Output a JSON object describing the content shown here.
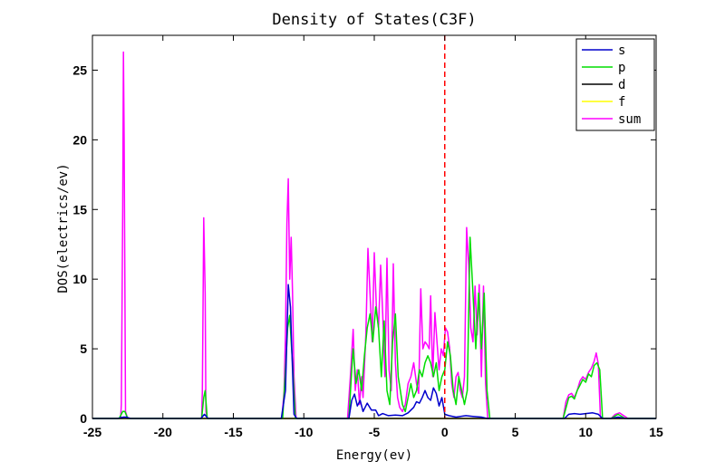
{
  "chart_data": {
    "type": "line",
    "title": "Density of States(C3F)",
    "xlabel": "Energy(ev)",
    "ylabel": "DOS(electrics/ev)",
    "xlim": [
      -25,
      15
    ],
    "ylim": [
      0,
      27.5
    ],
    "xticks": [
      -25,
      -20,
      -15,
      -10,
      -5,
      0,
      5,
      10,
      15
    ],
    "yticks": [
      0,
      5,
      10,
      15,
      20,
      25
    ],
    "grid": false,
    "legend_position": "top-right",
    "fermi_level": {
      "x": 0,
      "color": "#ff0000",
      "style": "dashed"
    },
    "series": [
      {
        "name": "s",
        "color": "#0000cc",
        "points": [
          [
            -25,
            0
          ],
          [
            -23.2,
            0
          ],
          [
            -22.8,
            0.1
          ],
          [
            -22.6,
            0.1
          ],
          [
            -22.3,
            0
          ],
          [
            -17.3,
            0
          ],
          [
            -17.05,
            0.3
          ],
          [
            -16.8,
            0
          ],
          [
            -11.6,
            0
          ],
          [
            -11.3,
            2
          ],
          [
            -11.1,
            9.6
          ],
          [
            -10.95,
            8
          ],
          [
            -10.7,
            0.3
          ],
          [
            -10.5,
            0
          ],
          [
            -6.8,
            0
          ],
          [
            -6.6,
            1.3
          ],
          [
            -6.4,
            1.75
          ],
          [
            -6.2,
            0.9
          ],
          [
            -6.0,
            1.3
          ],
          [
            -5.8,
            0.5
          ],
          [
            -5.5,
            1.1
          ],
          [
            -5.2,
            0.6
          ],
          [
            -4.9,
            0.6
          ],
          [
            -4.7,
            0.2
          ],
          [
            -4.4,
            0.35
          ],
          [
            -4.0,
            0.2
          ],
          [
            -3.5,
            0.25
          ],
          [
            -3.0,
            0.2
          ],
          [
            -2.6,
            0.4
          ],
          [
            -2.2,
            0.8
          ],
          [
            -2.0,
            1.2
          ],
          [
            -1.8,
            1.1
          ],
          [
            -1.6,
            1.5
          ],
          [
            -1.4,
            2.0
          ],
          [
            -1.2,
            1.5
          ],
          [
            -1.0,
            1.3
          ],
          [
            -0.8,
            2.2
          ],
          [
            -0.6,
            1.8
          ],
          [
            -0.4,
            0.9
          ],
          [
            -0.2,
            1.5
          ],
          [
            0.0,
            0.3
          ],
          [
            0.3,
            0.2
          ],
          [
            0.8,
            0.1
          ],
          [
            1.5,
            0.2
          ],
          [
            2.0,
            0.15
          ],
          [
            2.6,
            0.1
          ],
          [
            3.0,
            0
          ],
          [
            8.5,
            0
          ],
          [
            8.8,
            0.3
          ],
          [
            9.2,
            0.35
          ],
          [
            9.6,
            0.3
          ],
          [
            10.0,
            0.35
          ],
          [
            10.5,
            0.4
          ],
          [
            10.9,
            0.3
          ],
          [
            11.2,
            0
          ],
          [
            11.8,
            0
          ],
          [
            12.3,
            0.1
          ],
          [
            12.8,
            0
          ],
          [
            15,
            0
          ]
        ]
      },
      {
        "name": "p",
        "color": "#00dd00",
        "points": [
          [
            -25,
            0
          ],
          [
            -23.1,
            0
          ],
          [
            -22.85,
            0.5
          ],
          [
            -22.7,
            0.5
          ],
          [
            -22.5,
            0
          ],
          [
            -17.25,
            0
          ],
          [
            -17.1,
            1.5
          ],
          [
            -17.0,
            2.0
          ],
          [
            -16.85,
            0
          ],
          [
            -11.5,
            0
          ],
          [
            -11.3,
            3.5
          ],
          [
            -11.15,
            6.5
          ],
          [
            -11.0,
            7.4
          ],
          [
            -10.9,
            5.5
          ],
          [
            -10.8,
            4.0
          ],
          [
            -10.6,
            0
          ],
          [
            -6.8,
            0
          ],
          [
            -6.6,
            3.5
          ],
          [
            -6.5,
            5.0
          ],
          [
            -6.3,
            2.5
          ],
          [
            -6.1,
            3.5
          ],
          [
            -5.9,
            2.0
          ],
          [
            -5.7,
            4.5
          ],
          [
            -5.5,
            6.5
          ],
          [
            -5.3,
            7.5
          ],
          [
            -5.1,
            5.5
          ],
          [
            -4.9,
            8.0
          ],
          [
            -4.7,
            6.5
          ],
          [
            -4.5,
            3.0
          ],
          [
            -4.3,
            7.0
          ],
          [
            -4.1,
            2.0
          ],
          [
            -3.9,
            1.0
          ],
          [
            -3.7,
            5.5
          ],
          [
            -3.5,
            7.5
          ],
          [
            -3.3,
            3.0
          ],
          [
            -3.0,
            1.0
          ],
          [
            -2.8,
            0.5
          ],
          [
            -2.6,
            1.5
          ],
          [
            -2.4,
            2.5
          ],
          [
            -2.2,
            1.5
          ],
          [
            -2.0,
            2.0
          ],
          [
            -1.8,
            3.5
          ],
          [
            -1.6,
            3.0
          ],
          [
            -1.4,
            4.0
          ],
          [
            -1.2,
            4.5
          ],
          [
            -1.0,
            4.0
          ],
          [
            -0.8,
            3.0
          ],
          [
            -0.6,
            4.0
          ],
          [
            -0.4,
            2.0
          ],
          [
            -0.2,
            3.0
          ],
          [
            0.0,
            3.5
          ],
          [
            0.2,
            5.5
          ],
          [
            0.4,
            4.5
          ],
          [
            0.6,
            2.0
          ],
          [
            0.8,
            1.0
          ],
          [
            1.0,
            3.0
          ],
          [
            1.2,
            2.0
          ],
          [
            1.4,
            1.0
          ],
          [
            1.6,
            2.0
          ],
          [
            1.8,
            13.0
          ],
          [
            2.0,
            9.0
          ],
          [
            2.2,
            5.0
          ],
          [
            2.4,
            9.0
          ],
          [
            2.6,
            5.0
          ],
          [
            2.8,
            9.0
          ],
          [
            3.0,
            2.0
          ],
          [
            3.2,
            0
          ],
          [
            8.4,
            0
          ],
          [
            8.8,
            1.5
          ],
          [
            9.0,
            1.6
          ],
          [
            9.2,
            1.4
          ],
          [
            9.4,
            2.0
          ],
          [
            9.6,
            2.4
          ],
          [
            9.8,
            2.8
          ],
          [
            10.0,
            2.6
          ],
          [
            10.2,
            3.2
          ],
          [
            10.4,
            3.0
          ],
          [
            10.6,
            3.8
          ],
          [
            10.8,
            4.0
          ],
          [
            11.0,
            3.5
          ],
          [
            11.2,
            0
          ],
          [
            11.8,
            0
          ],
          [
            12.3,
            0.3
          ],
          [
            12.8,
            0
          ],
          [
            15,
            0
          ]
        ]
      },
      {
        "name": "d",
        "color": "#000000",
        "points": [
          [
            -25,
            0
          ],
          [
            15,
            0
          ]
        ]
      },
      {
        "name": "f",
        "color": "#ffff00",
        "points": [
          [
            -25,
            0
          ],
          [
            15,
            0
          ]
        ]
      },
      {
        "name": "sum",
        "color": "#ff00ff",
        "points": [
          [
            -25,
            0
          ],
          [
            -23.0,
            0
          ],
          [
            -22.95,
            1.0
          ],
          [
            -22.85,
            15.0
          ],
          [
            -22.8,
            26.3
          ],
          [
            -22.75,
            20.0
          ],
          [
            -22.65,
            0.5
          ],
          [
            -22.5,
            0
          ],
          [
            -17.25,
            0
          ],
          [
            -17.2,
            2.0
          ],
          [
            -17.1,
            14.4
          ],
          [
            -17.0,
            9.0
          ],
          [
            -16.95,
            0.5
          ],
          [
            -16.85,
            0
          ],
          [
            -11.55,
            0
          ],
          [
            -11.4,
            2.0
          ],
          [
            -11.3,
            6.0
          ],
          [
            -11.2,
            14.0
          ],
          [
            -11.1,
            17.2
          ],
          [
            -11.0,
            10.0
          ],
          [
            -10.9,
            13.0
          ],
          [
            -10.8,
            9.0
          ],
          [
            -10.7,
            3.0
          ],
          [
            -10.55,
            0
          ],
          [
            -6.9,
            0
          ],
          [
            -6.7,
            3.0
          ],
          [
            -6.5,
            6.4
          ],
          [
            -6.35,
            2.0
          ],
          [
            -6.2,
            3.5
          ],
          [
            -6.05,
            1.0
          ],
          [
            -5.9,
            3.0
          ],
          [
            -5.8,
            1.5
          ],
          [
            -5.6,
            6.0
          ],
          [
            -5.45,
            12.2
          ],
          [
            -5.3,
            9.0
          ],
          [
            -5.15,
            5.5
          ],
          [
            -5.0,
            11.9
          ],
          [
            -4.85,
            8.0
          ],
          [
            -4.7,
            6.5
          ],
          [
            -4.55,
            11.0
          ],
          [
            -4.4,
            7.5
          ],
          [
            -4.25,
            3.0
          ],
          [
            -4.1,
            11.5
          ],
          [
            -3.95,
            3.5
          ],
          [
            -3.8,
            2.0
          ],
          [
            -3.65,
            11.1
          ],
          [
            -3.5,
            4.0
          ],
          [
            -3.35,
            1.5
          ],
          [
            -3.2,
            0.8
          ],
          [
            -3.0,
            0.5
          ],
          [
            -2.8,
            1.0
          ],
          [
            -2.6,
            2.5
          ],
          [
            -2.4,
            3.0
          ],
          [
            -2.2,
            4.0
          ],
          [
            -2.0,
            2.5
          ],
          [
            -1.85,
            1.8
          ],
          [
            -1.7,
            9.3
          ],
          [
            -1.55,
            5.0
          ],
          [
            -1.4,
            5.5
          ],
          [
            -1.25,
            5.3
          ],
          [
            -1.1,
            5.0
          ],
          [
            -1.0,
            8.8
          ],
          [
            -0.85,
            3.0
          ],
          [
            -0.7,
            7.6
          ],
          [
            -0.55,
            5.5
          ],
          [
            -0.4,
            3.5
          ],
          [
            -0.25,
            5.0
          ],
          [
            -0.1,
            4.5
          ],
          [
            0.05,
            6.5
          ],
          [
            0.2,
            6.2
          ],
          [
            0.35,
            5.0
          ],
          [
            0.5,
            2.5
          ],
          [
            0.65,
            1.5
          ],
          [
            0.8,
            3.0
          ],
          [
            0.95,
            3.3
          ],
          [
            1.1,
            2.0
          ],
          [
            1.25,
            1.5
          ],
          [
            1.4,
            3.0
          ],
          [
            1.55,
            13.7
          ],
          [
            1.7,
            11.0
          ],
          [
            1.85,
            6.5
          ],
          [
            2.0,
            5.5
          ],
          [
            2.15,
            9.5
          ],
          [
            2.3,
            6.0
          ],
          [
            2.45,
            9.6
          ],
          [
            2.6,
            3.0
          ],
          [
            2.75,
            9.5
          ],
          [
            2.9,
            2.5
          ],
          [
            3.05,
            0
          ],
          [
            8.4,
            0
          ],
          [
            8.6,
            1.2
          ],
          [
            8.8,
            1.7
          ],
          [
            9.0,
            1.8
          ],
          [
            9.2,
            1.5
          ],
          [
            9.4,
            2.0
          ],
          [
            9.6,
            2.7
          ],
          [
            9.8,
            3.0
          ],
          [
            10.0,
            2.8
          ],
          [
            10.2,
            3.3
          ],
          [
            10.4,
            3.6
          ],
          [
            10.6,
            4.1
          ],
          [
            10.75,
            4.7
          ],
          [
            10.9,
            3.9
          ],
          [
            11.05,
            0
          ],
          [
            11.8,
            0
          ],
          [
            12.1,
            0.3
          ],
          [
            12.4,
            0.4
          ],
          [
            12.7,
            0.2
          ],
          [
            13.0,
            0
          ],
          [
            15,
            0
          ]
        ]
      }
    ]
  }
}
